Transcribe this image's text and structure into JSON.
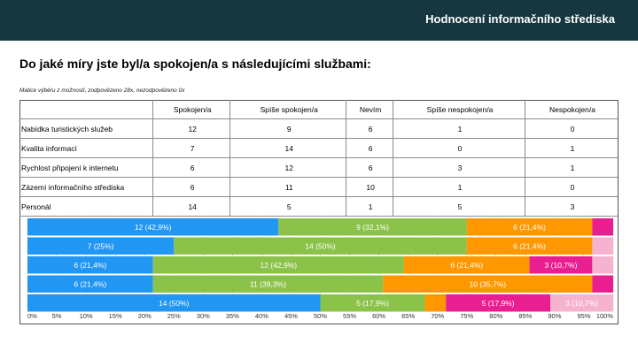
{
  "header": {
    "title": "Hodnocení informačního střediska"
  },
  "question": "Do jaké míry jste byl/a spokojen/a s následujícími službami:",
  "subtitle": "Matice výběru z možností, zodpovězeno 28x, nezodpovězeno 0x",
  "table": {
    "columns": [
      "Spokojen/a",
      "Spíše spokojen/a",
      "Nevím",
      "Spíše nespokojen/a",
      "Nespokojen/a"
    ],
    "rows": [
      {
        "label": "Nabídka turistických služeb",
        "values": [
          "12",
          "9",
          "6",
          "1",
          "0"
        ]
      },
      {
        "label": "Kvalita informací",
        "values": [
          "7",
          "14",
          "6",
          "0",
          "1"
        ]
      },
      {
        "label": "Rychlost připojení k internetu",
        "values": [
          "6",
          "12",
          "6",
          "3",
          "1"
        ]
      },
      {
        "label": "Zázemí informačního střediska",
        "values": [
          "6",
          "11",
          "10",
          "1",
          "0"
        ]
      },
      {
        "label": "Personál",
        "values": [
          "14",
          "5",
          "1",
          "5",
          "3"
        ]
      }
    ]
  },
  "chart_data": {
    "type": "stacked-bar-horizontal-100",
    "categories": [
      "Nabídka turistických služeb",
      "Kvalita informací",
      "Rychlost připojení k internetu",
      "Zázemí informačního střediska",
      "Personál"
    ],
    "series": [
      {
        "name": "Spokojen/a",
        "color": "#2196f3",
        "values": [
          12,
          7,
          6,
          6,
          14
        ],
        "labels": [
          "12 (42,9%)",
          "7 (25%)",
          "6 (21,4%)",
          "6 (21,4%)",
          "14 (50%)"
        ]
      },
      {
        "name": "Spíše spokojen/a",
        "color": "#8bc34a",
        "values": [
          9,
          14,
          12,
          11,
          5
        ],
        "labels": [
          "9 (32,1%)",
          "14 (50%)",
          "12 (42,9%)",
          "11 (39,3%)",
          "5 (17,9%)"
        ]
      },
      {
        "name": "Nevím",
        "color": "#ff9800",
        "values": [
          6,
          6,
          6,
          10,
          1
        ],
        "labels": [
          "6 (21,4%)",
          "6 (21,4%)",
          "6 (21,4%)",
          "10 (35,7%)",
          ""
        ]
      },
      {
        "name": "Spíše nespokojen/a",
        "color": "#e91e90",
        "values": [
          1,
          0,
          3,
          1,
          5
        ],
        "labels": [
          "",
          "",
          "3 (10,7%)",
          "",
          "5 (17,9%)"
        ]
      },
      {
        "name": "Nespokojen/a",
        "color": "#f5b3cf",
        "values": [
          0,
          1,
          1,
          0,
          3
        ],
        "labels": [
          "",
          "",
          "",
          "",
          "3 (10,7%)"
        ]
      }
    ],
    "xlim": [
      0,
      100
    ],
    "x_ticks": [
      "0%",
      "5%",
      "10%",
      "15%",
      "20%",
      "25%",
      "30%",
      "35%",
      "40%",
      "45%",
      "50%",
      "55%",
      "60%",
      "65%",
      "70%",
      "75%",
      "80%",
      "85%",
      "90%",
      "95%",
      "100%"
    ]
  }
}
